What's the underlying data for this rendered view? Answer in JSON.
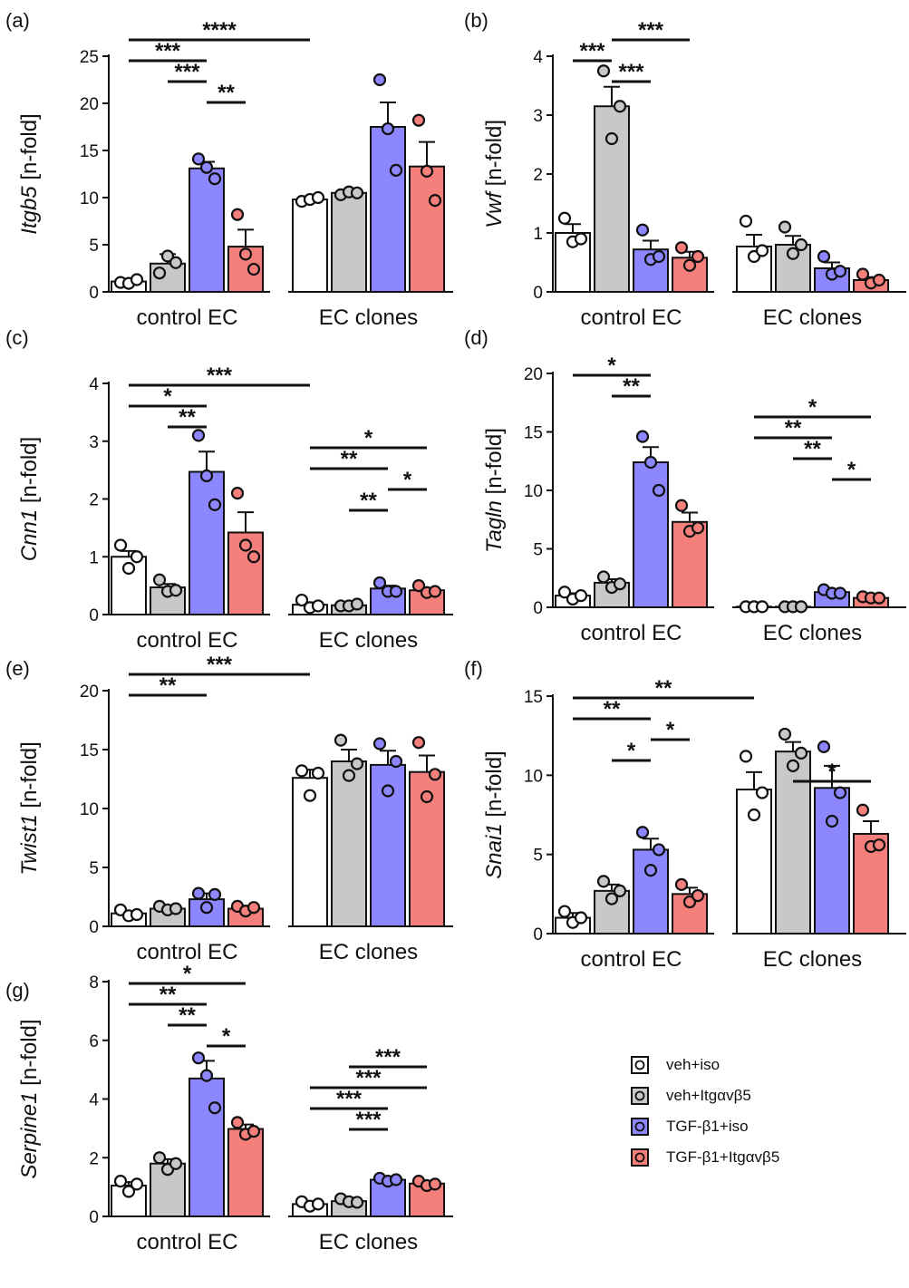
{
  "chart_data": [
    {
      "id": "a",
      "type": "bar",
      "panel_label": "(a)",
      "ylabel_gene": "Itgb5",
      "ylabel_unit": "[n-fold]",
      "ylim": [
        0,
        25
      ],
      "yticks": [
        0,
        5,
        10,
        15,
        20,
        25
      ],
      "groups": [
        "control EC",
        "EC clones"
      ],
      "series": [
        {
          "name": "veh+iso",
          "means": [
            1.1,
            9.8
          ],
          "sem": [
            0.3,
            0.3
          ],
          "points": [
            [
              1.0,
              0.9,
              1.3
            ],
            [
              9.6,
              9.8,
              10.0
            ]
          ]
        },
        {
          "name": "veh+Itgαvβ5",
          "means": [
            3.0,
            10.5
          ],
          "sem": [
            1.0,
            0.3
          ],
          "points": [
            [
              2.0,
              3.8,
              3.1
            ],
            [
              10.3,
              10.6,
              10.5
            ]
          ]
        },
        {
          "name": "TGF-β1+iso",
          "means": [
            13.1,
            17.5
          ],
          "sem": [
            0.7,
            2.6
          ],
          "points": [
            [
              14.1,
              13.2,
              12.0
            ],
            [
              22.5,
              17.3,
              12.9
            ]
          ]
        },
        {
          "name": "TGF-β1+Itgαvβ5",
          "means": [
            4.8,
            13.3
          ],
          "sem": [
            1.8,
            2.6
          ],
          "points": [
            [
              8.2,
              4.0,
              2.4
            ],
            [
              18.2,
              12.8,
              9.7
            ]
          ]
        }
      ],
      "significance": [
        {
          "from": [
            0,
            0
          ],
          "to": [
            1,
            0
          ],
          "label": "****"
        },
        {
          "from": [
            0,
            0
          ],
          "to": [
            0,
            2
          ],
          "label": "***"
        },
        {
          "from": [
            0,
            1
          ],
          "to": [
            0,
            2
          ],
          "label": "***"
        },
        {
          "from": [
            0,
            2
          ],
          "to": [
            0,
            3
          ],
          "label": "**"
        }
      ]
    },
    {
      "id": "b",
      "type": "bar",
      "panel_label": "(b)",
      "ylabel_gene": "Vwf",
      "ylabel_unit": "[n-fold]",
      "ylim": [
        0,
        4
      ],
      "yticks": [
        0,
        1,
        2,
        3,
        4
      ],
      "groups": [
        "control EC",
        "EC clones"
      ],
      "series": [
        {
          "name": "veh+iso",
          "means": [
            1.0,
            0.77
          ],
          "sem": [
            0.15,
            0.2
          ],
          "points": [
            [
              1.25,
              0.85,
              0.9
            ],
            [
              1.2,
              0.6,
              0.7
            ]
          ]
        },
        {
          "name": "veh+Itgαvβ5",
          "means": [
            3.15,
            0.8
          ],
          "sem": [
            0.33,
            0.15
          ],
          "points": [
            [
              3.75,
              2.6,
              3.15
            ],
            [
              1.1,
              0.65,
              0.8
            ]
          ]
        },
        {
          "name": "TGF-β1+iso",
          "means": [
            0.72,
            0.4
          ],
          "sem": [
            0.15,
            0.1
          ],
          "points": [
            [
              1.05,
              0.55,
              0.6
            ],
            [
              0.6,
              0.3,
              0.35
            ]
          ]
        },
        {
          "name": "TGF-β1+Itgαvβ5",
          "means": [
            0.58,
            0.2
          ],
          "sem": [
            0.1,
            0.05
          ],
          "points": [
            [
              0.75,
              0.45,
              0.6
            ],
            [
              0.3,
              0.15,
              0.2
            ]
          ]
        }
      ],
      "significance": [
        {
          "from": [
            0,
            1
          ],
          "to": [
            0,
            3
          ],
          "label": "***"
        },
        {
          "from": [
            0,
            0
          ],
          "to": [
            0,
            1
          ],
          "label": "***"
        },
        {
          "from": [
            0,
            1
          ],
          "to": [
            0,
            2
          ],
          "label": "***"
        }
      ]
    },
    {
      "id": "c",
      "type": "bar",
      "panel_label": "(c)",
      "ylabel_gene": "Cnn1",
      "ylabel_unit": "[n-fold]",
      "ylim": [
        0,
        4
      ],
      "yticks": [
        0,
        1,
        2,
        3,
        4
      ],
      "groups": [
        "control EC",
        "EC clones"
      ],
      "series": [
        {
          "name": "veh+iso",
          "means": [
            1.0,
            0.17
          ],
          "sem": [
            0.1,
            0.04
          ],
          "points": [
            [
              1.2,
              0.8,
              1.0
            ],
            [
              0.25,
              0.12,
              0.15
            ]
          ]
        },
        {
          "name": "veh+Itgαvβ5",
          "means": [
            0.47,
            0.16
          ],
          "sem": [
            0.06,
            0.02
          ],
          "points": [
            [
              0.6,
              0.4,
              0.42
            ],
            [
              0.15,
              0.15,
              0.18
            ]
          ]
        },
        {
          "name": "TGF-β1+iso",
          "means": [
            2.47,
            0.45
          ],
          "sem": [
            0.35,
            0.05
          ],
          "points": [
            [
              3.1,
              2.4,
              1.9
            ],
            [
              0.55,
              0.4,
              0.4
            ]
          ]
        },
        {
          "name": "TGF-β1+Itgαvβ5",
          "means": [
            1.42,
            0.42
          ],
          "sem": [
            0.35,
            0.04
          ],
          "points": [
            [
              2.1,
              1.2,
              1.0
            ],
            [
              0.5,
              0.38,
              0.4
            ]
          ]
        }
      ],
      "significance": [
        {
          "from": [
            0,
            0
          ],
          "to": [
            1,
            0
          ],
          "label": "***"
        },
        {
          "from": [
            0,
            0
          ],
          "to": [
            0,
            2
          ],
          "label": "*"
        },
        {
          "from": [
            0,
            1
          ],
          "to": [
            0,
            2
          ],
          "label": "**"
        },
        {
          "from": [
            1,
            0
          ],
          "to": [
            1,
            3
          ],
          "label": "*"
        },
        {
          "from": [
            1,
            0
          ],
          "to": [
            1,
            2
          ],
          "label": "**"
        },
        {
          "from": [
            1,
            2
          ],
          "to": [
            1,
            3
          ],
          "label": "*"
        },
        {
          "from": [
            1,
            1
          ],
          "to": [
            1,
            2
          ],
          "label": "**"
        }
      ]
    },
    {
      "id": "d",
      "type": "bar",
      "panel_label": "(d)",
      "ylabel_gene": "Tagln",
      "ylabel_unit": "[n-fold]",
      "ylim": [
        0,
        20
      ],
      "yticks": [
        0,
        5,
        10,
        15,
        20
      ],
      "groups": [
        "control EC",
        "EC clones"
      ],
      "series": [
        {
          "name": "veh+iso",
          "means": [
            1.0,
            0.05
          ],
          "sem": [
            0.2,
            0.01
          ],
          "points": [
            [
              1.3,
              0.7,
              1.0
            ],
            [
              0.05,
              0.05,
              0.05
            ]
          ]
        },
        {
          "name": "veh+Itgαvβ5",
          "means": [
            2.1,
            0.05
          ],
          "sem": [
            0.3,
            0.01
          ],
          "points": [
            [
              2.6,
              1.7,
              2.0
            ],
            [
              0.05,
              0.05,
              0.05
            ]
          ]
        },
        {
          "name": "TGF-β1+iso",
          "means": [
            12.4,
            1.3
          ],
          "sem": [
            1.3,
            0.15
          ],
          "points": [
            [
              14.6,
              12.4,
              10.0
            ],
            [
              1.5,
              1.2,
              1.2
            ]
          ]
        },
        {
          "name": "TGF-β1+Itgαvβ5",
          "means": [
            7.3,
            0.8
          ],
          "sem": [
            0.8,
            0.05
          ],
          "points": [
            [
              8.7,
              6.5,
              6.8
            ],
            [
              0.9,
              0.8,
              0.8
            ]
          ]
        }
      ],
      "significance": [
        {
          "from": [
            0,
            0
          ],
          "to": [
            0,
            2
          ],
          "label": "*"
        },
        {
          "from": [
            0,
            1
          ],
          "to": [
            0,
            2
          ],
          "label": "**"
        },
        {
          "from": [
            1,
            0
          ],
          "to": [
            1,
            3
          ],
          "label": "*"
        },
        {
          "from": [
            1,
            0
          ],
          "to": [
            1,
            2
          ],
          "label": "**"
        },
        {
          "from": [
            1,
            1
          ],
          "to": [
            1,
            2
          ],
          "label": "**"
        },
        {
          "from": [
            1,
            2
          ],
          "to": [
            1,
            3
          ],
          "label": "*"
        }
      ]
    },
    {
      "id": "e",
      "type": "bar",
      "panel_label": "(e)",
      "ylabel_gene": "Twist1",
      "ylabel_unit": "[n-fold]",
      "ylim": [
        0,
        20
      ],
      "yticks": [
        0,
        5,
        10,
        15,
        20
      ],
      "groups": [
        "control EC",
        "EC clones"
      ],
      "series": [
        {
          "name": "veh+iso",
          "means": [
            1.1,
            12.6
          ],
          "sem": [
            0.2,
            0.7
          ],
          "points": [
            [
              1.4,
              0.9,
              1.0
            ],
            [
              13.2,
              11.1,
              13.0
            ]
          ]
        },
        {
          "name": "veh+Itgαvβ5",
          "means": [
            1.5,
            14.0
          ],
          "sem": [
            0.15,
            1.0
          ],
          "points": [
            [
              1.7,
              1.4,
              1.5
            ],
            [
              15.8,
              12.8,
              13.8
            ]
          ]
        },
        {
          "name": "TGF-β1+iso",
          "means": [
            2.3,
            13.7
          ],
          "sem": [
            0.5,
            1.2
          ],
          "points": [
            [
              2.8,
              1.6,
              2.7
            ],
            [
              15.5,
              11.5,
              14.0
            ]
          ]
        },
        {
          "name": "TGF-β1+Itgαvβ5",
          "means": [
            1.5,
            13.1
          ],
          "sem": [
            0.15,
            1.4
          ],
          "points": [
            [
              1.7,
              1.3,
              1.6
            ],
            [
              15.6,
              11.0,
              12.9
            ]
          ]
        }
      ],
      "significance": [
        {
          "from": [
            0,
            0
          ],
          "to": [
            1,
            0
          ],
          "label": "***"
        },
        {
          "from": [
            0,
            0
          ],
          "to": [
            0,
            2
          ],
          "label": "**"
        }
      ]
    },
    {
      "id": "f",
      "type": "bar",
      "panel_label": "(f)",
      "ylabel_gene": "Snai1",
      "ylabel_unit": "[n-fold]",
      "ylim": [
        0,
        15
      ],
      "yticks": [
        0,
        5,
        10,
        15
      ],
      "groups": [
        "control EC",
        "EC clones"
      ],
      "series": [
        {
          "name": "veh+iso",
          "means": [
            1.0,
            9.1
          ],
          "sem": [
            0.3,
            1.1
          ],
          "points": [
            [
              1.4,
              0.7,
              1.0
            ],
            [
              11.2,
              7.5,
              8.9
            ]
          ]
        },
        {
          "name": "veh+Itgαvβ5",
          "means": [
            2.7,
            11.5
          ],
          "sem": [
            0.4,
            0.6
          ],
          "points": [
            [
              3.3,
              2.2,
              2.7
            ],
            [
              12.6,
              10.6,
              11.4
            ]
          ]
        },
        {
          "name": "TGF-β1+iso",
          "means": [
            5.3,
            9.2
          ],
          "sem": [
            0.7,
            1.4
          ],
          "points": [
            [
              6.4,
              4.0,
              5.3
            ],
            [
              11.8,
              7.1,
              8.9
            ]
          ]
        },
        {
          "name": "TGF-β1+Itgαvβ5",
          "means": [
            2.5,
            6.3
          ],
          "sem": [
            0.4,
            0.8
          ],
          "points": [
            [
              3.1,
              2.0,
              2.4
            ],
            [
              7.8,
              5.5,
              5.6
            ]
          ]
        }
      ],
      "significance": [
        {
          "from": [
            0,
            0
          ],
          "to": [
            1,
            0
          ],
          "label": "**"
        },
        {
          "from": [
            0,
            0
          ],
          "to": [
            0,
            2
          ],
          "label": "**"
        },
        {
          "from": [
            0,
            2
          ],
          "to": [
            0,
            3
          ],
          "label": "*"
        },
        {
          "from": [
            0,
            1
          ],
          "to": [
            0,
            2
          ],
          "label": "*"
        },
        {
          "from": [
            1,
            1
          ],
          "to": [
            1,
            3
          ],
          "label": "*"
        }
      ]
    },
    {
      "id": "g",
      "type": "bar",
      "panel_label": "(g)",
      "ylabel_gene": "Serpine1",
      "ylabel_unit": "[n-fold]",
      "ylim": [
        0,
        8
      ],
      "yticks": [
        0,
        2,
        4,
        6,
        8
      ],
      "groups": [
        "control EC",
        "EC clones"
      ],
      "series": [
        {
          "name": "veh+iso",
          "means": [
            1.05,
            0.42
          ],
          "sem": [
            0.12,
            0.05
          ],
          "points": [
            [
              1.2,
              0.85,
              1.1
            ],
            [
              0.5,
              0.35,
              0.42
            ]
          ]
        },
        {
          "name": "veh+Itgαvβ5",
          "means": [
            1.8,
            0.52
          ],
          "sem": [
            0.15,
            0.05
          ],
          "points": [
            [
              2.0,
              1.6,
              1.8
            ],
            [
              0.6,
              0.5,
              0.48
            ]
          ]
        },
        {
          "name": "TGF-β1+iso",
          "means": [
            4.7,
            1.25
          ],
          "sem": [
            0.6,
            0.05
          ],
          "points": [
            [
              5.4,
              4.8,
              3.7
            ],
            [
              1.3,
              1.2,
              1.25
            ]
          ]
        },
        {
          "name": "TGF-β1+Itgαvβ5",
          "means": [
            2.98,
            1.12
          ],
          "sem": [
            0.15,
            0.06
          ],
          "points": [
            [
              3.2,
              2.8,
              2.9
            ],
            [
              1.2,
              1.05,
              1.1
            ]
          ]
        }
      ],
      "significance": [
        {
          "from": [
            0,
            0
          ],
          "to": [
            0,
            3
          ],
          "label": "*"
        },
        {
          "from": [
            0,
            0
          ],
          "to": [
            0,
            2
          ],
          "label": "**"
        },
        {
          "from": [
            0,
            1
          ],
          "to": [
            0,
            2
          ],
          "label": "**"
        },
        {
          "from": [
            0,
            2
          ],
          "to": [
            0,
            3
          ],
          "label": "*"
        },
        {
          "from": [
            1,
            1
          ],
          "to": [
            1,
            3
          ],
          "label": "***"
        },
        {
          "from": [
            1,
            0
          ],
          "to": [
            1,
            3
          ],
          "label": "***"
        },
        {
          "from": [
            1,
            0
          ],
          "to": [
            1,
            2
          ],
          "label": "***"
        },
        {
          "from": [
            1,
            1
          ],
          "to": [
            1,
            2
          ],
          "label": "***"
        }
      ]
    }
  ],
  "legend": {
    "entries": [
      "veh+iso",
      "veh+Itgαvβ5",
      "TGF-β1+iso",
      "TGF-β1+Itgαvβ5"
    ]
  },
  "colors": {
    "veh+iso": "#ffffff",
    "veh+Itgαvβ5": "#c8c8c8",
    "TGF-β1+iso": "#8c87ff",
    "TGF-β1+Itgαvβ5": "#f57f7b",
    "ink": "#111111"
  }
}
